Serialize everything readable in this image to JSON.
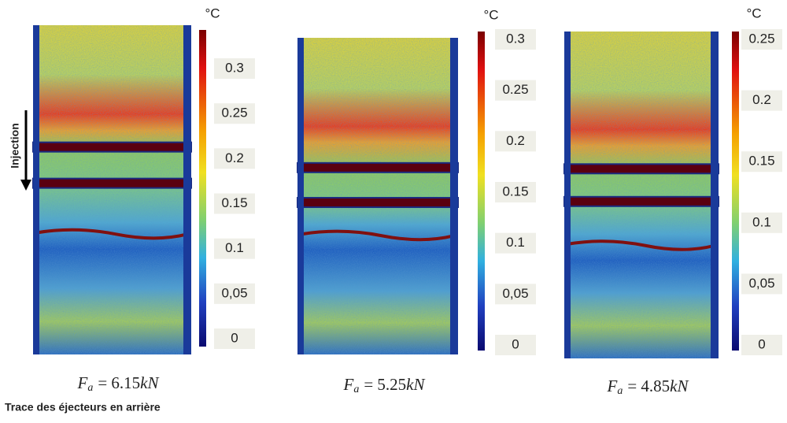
{
  "side_label": "Injection",
  "footnote": "Trace des éjecteurs en arrière",
  "panels": [
    {
      "unit": "°C",
      "ticks": [
        "0.3",
        "0.25",
        "0.2",
        "0.15",
        "0.1",
        "0,05",
        "0"
      ],
      "caption": {
        "symbol": "F",
        "subscript": "a",
        "equation": "= 6.15",
        "unit": "kN"
      }
    },
    {
      "unit": "°C",
      "ticks": [
        "0.3",
        "0.25",
        "0.2",
        "0.15",
        "0.1",
        "0,05",
        "0"
      ],
      "caption": {
        "symbol": "F",
        "subscript": "a",
        "equation": "= 5.25",
        "unit": "kN"
      }
    },
    {
      "unit": "°C",
      "ticks": [
        "0.25",
        "0.2",
        "0.15",
        "0.1",
        "0,05",
        "0"
      ],
      "caption": {
        "symbol": "F",
        "subscript": "a",
        "equation": "= 4.85",
        "unit": "kN"
      }
    }
  ]
}
